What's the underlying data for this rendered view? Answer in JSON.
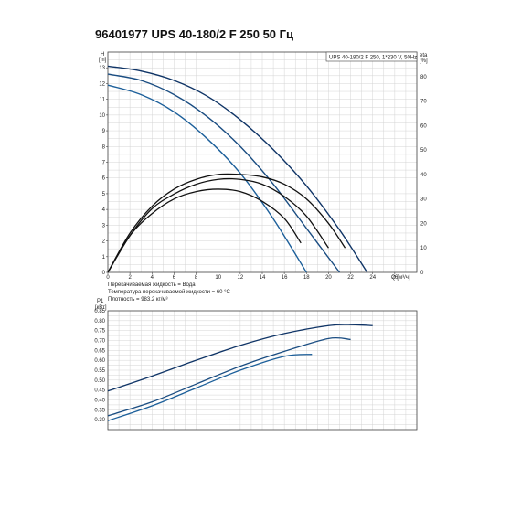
{
  "title": "96401977 UPS 40-180/2 F 250 50 Гц",
  "colors": {
    "speed1": "#1c5f9a",
    "speed2": "#1a4d82",
    "speed3": "#0f3466",
    "efficiency": "#111111",
    "grid": "#d4d4d4",
    "frame": "#444444"
  },
  "info": {
    "legend_label": "UPS 40-180/2 F 250, 1*230 V, 50Hz",
    "liquid": "Перекачиваемая жидкость = Вода",
    "temperature": "Температура перекачиваемой жидкости = 60 °C",
    "density": "Плотность = 983.2 кг/м³"
  },
  "chart_data": [
    {
      "type": "line",
      "ylabel_top": "H",
      "ylabel_unit": "[m]",
      "y2label_top": "eta",
      "y2label_unit": "[%]",
      "xlabel": "Q [м³/ч]",
      "xlim": [
        0,
        28
      ],
      "ylim": [
        0,
        14
      ],
      "y2lim": [
        0,
        90
      ],
      "xticks": [
        0,
        2,
        4,
        6,
        8,
        10,
        12,
        14,
        16,
        18,
        20,
        22,
        24,
        26
      ],
      "yticks": [
        0,
        1,
        2,
        3,
        4,
        5,
        6,
        7,
        8,
        9,
        10,
        11,
        12,
        13
      ],
      "y2ticks": [
        0,
        10,
        20,
        30,
        40,
        50,
        60,
        70,
        80
      ],
      "series": [
        {
          "axis": "y",
          "x": [
            0,
            3,
            6,
            9,
            12,
            15,
            18,
            21,
            23.5
          ],
          "y": [
            13.1,
            12.8,
            12.2,
            11.2,
            9.7,
            7.8,
            5.5,
            2.7,
            0
          ]
        },
        {
          "axis": "y",
          "x": [
            0,
            3,
            6,
            9,
            12,
            15,
            18,
            21
          ],
          "y": [
            12.6,
            12.2,
            11.3,
            9.9,
            8.0,
            5.6,
            2.8,
            0
          ]
        },
        {
          "axis": "y",
          "x": [
            0,
            3,
            6,
            9,
            12,
            15,
            18
          ],
          "y": [
            11.9,
            11.3,
            10.2,
            8.5,
            6.3,
            3.4,
            0
          ]
        },
        {
          "axis": "y2",
          "x": [
            0,
            2,
            4,
            6,
            8,
            10,
            12,
            14,
            16,
            18,
            20,
            21.5
          ],
          "y": [
            0,
            16,
            27,
            34,
            38,
            40,
            40,
            39,
            36,
            30,
            20,
            10
          ]
        },
        {
          "axis": "y2",
          "x": [
            0,
            2,
            4,
            6,
            8,
            10,
            12,
            14,
            16,
            18,
            20
          ],
          "y": [
            0,
            15,
            26,
            32,
            36,
            38,
            38,
            36,
            31,
            23,
            10
          ]
        },
        {
          "axis": "y2",
          "x": [
            0,
            2,
            4,
            6,
            8,
            10,
            12,
            14,
            16,
            17.5
          ],
          "y": [
            0,
            15,
            24,
            30,
            33,
            34,
            33,
            29,
            22,
            12
          ]
        }
      ]
    },
    {
      "type": "line",
      "ylabel_top": "P1",
      "ylabel_unit": "[кВт]",
      "xlim": [
        0,
        28
      ],
      "ylim": [
        0.25,
        0.85
      ],
      "yticks": [
        0.3,
        0.35,
        0.4,
        0.45,
        0.5,
        0.55,
        0.6,
        0.65,
        0.7,
        0.75,
        0.8,
        0.85
      ],
      "ytick_labels": [
        "0.30",
        "0.35",
        "0.40",
        "0.45",
        "0.50",
        "0.55",
        "0.60",
        "0.65",
        "0.70",
        "0.75",
        "0.80",
        "0.85"
      ],
      "series": [
        {
          "x": [
            0,
            4,
            8,
            12,
            16,
            20,
            22,
            24
          ],
          "y": [
            0.445,
            0.52,
            0.6,
            0.675,
            0.735,
            0.775,
            0.78,
            0.775
          ]
        },
        {
          "x": [
            0,
            4,
            8,
            12,
            16,
            20,
            22
          ],
          "y": [
            0.32,
            0.39,
            0.48,
            0.57,
            0.645,
            0.71,
            0.705
          ]
        },
        {
          "x": [
            0,
            4,
            8,
            12,
            16,
            18.5
          ],
          "y": [
            0.295,
            0.37,
            0.46,
            0.55,
            0.62,
            0.63
          ]
        }
      ]
    }
  ]
}
